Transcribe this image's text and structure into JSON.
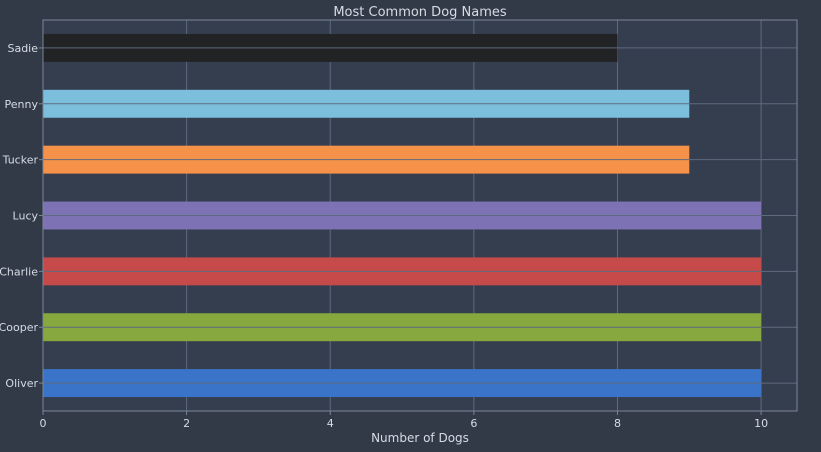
{
  "chart_data": {
    "type": "bar",
    "orientation": "horizontal",
    "title": "Most Common Dog Names",
    "xlabel": "Number of Dogs",
    "ylabel": "",
    "xlim": [
      0,
      10.5
    ],
    "xticks": [
      0,
      2,
      4,
      6,
      8,
      10
    ],
    "grid": true,
    "categories": [
      "Oliver",
      "Cooper",
      "Charlie",
      "Lucy",
      "Tucker",
      "Penny",
      "Sadie"
    ],
    "values": [
      10,
      10,
      10,
      10,
      9,
      9,
      8
    ],
    "colors": [
      "#3a74c9",
      "#86a83f",
      "#c64a4a",
      "#7d72b3",
      "#f59148",
      "#7bbfdd",
      "#222325"
    ]
  }
}
